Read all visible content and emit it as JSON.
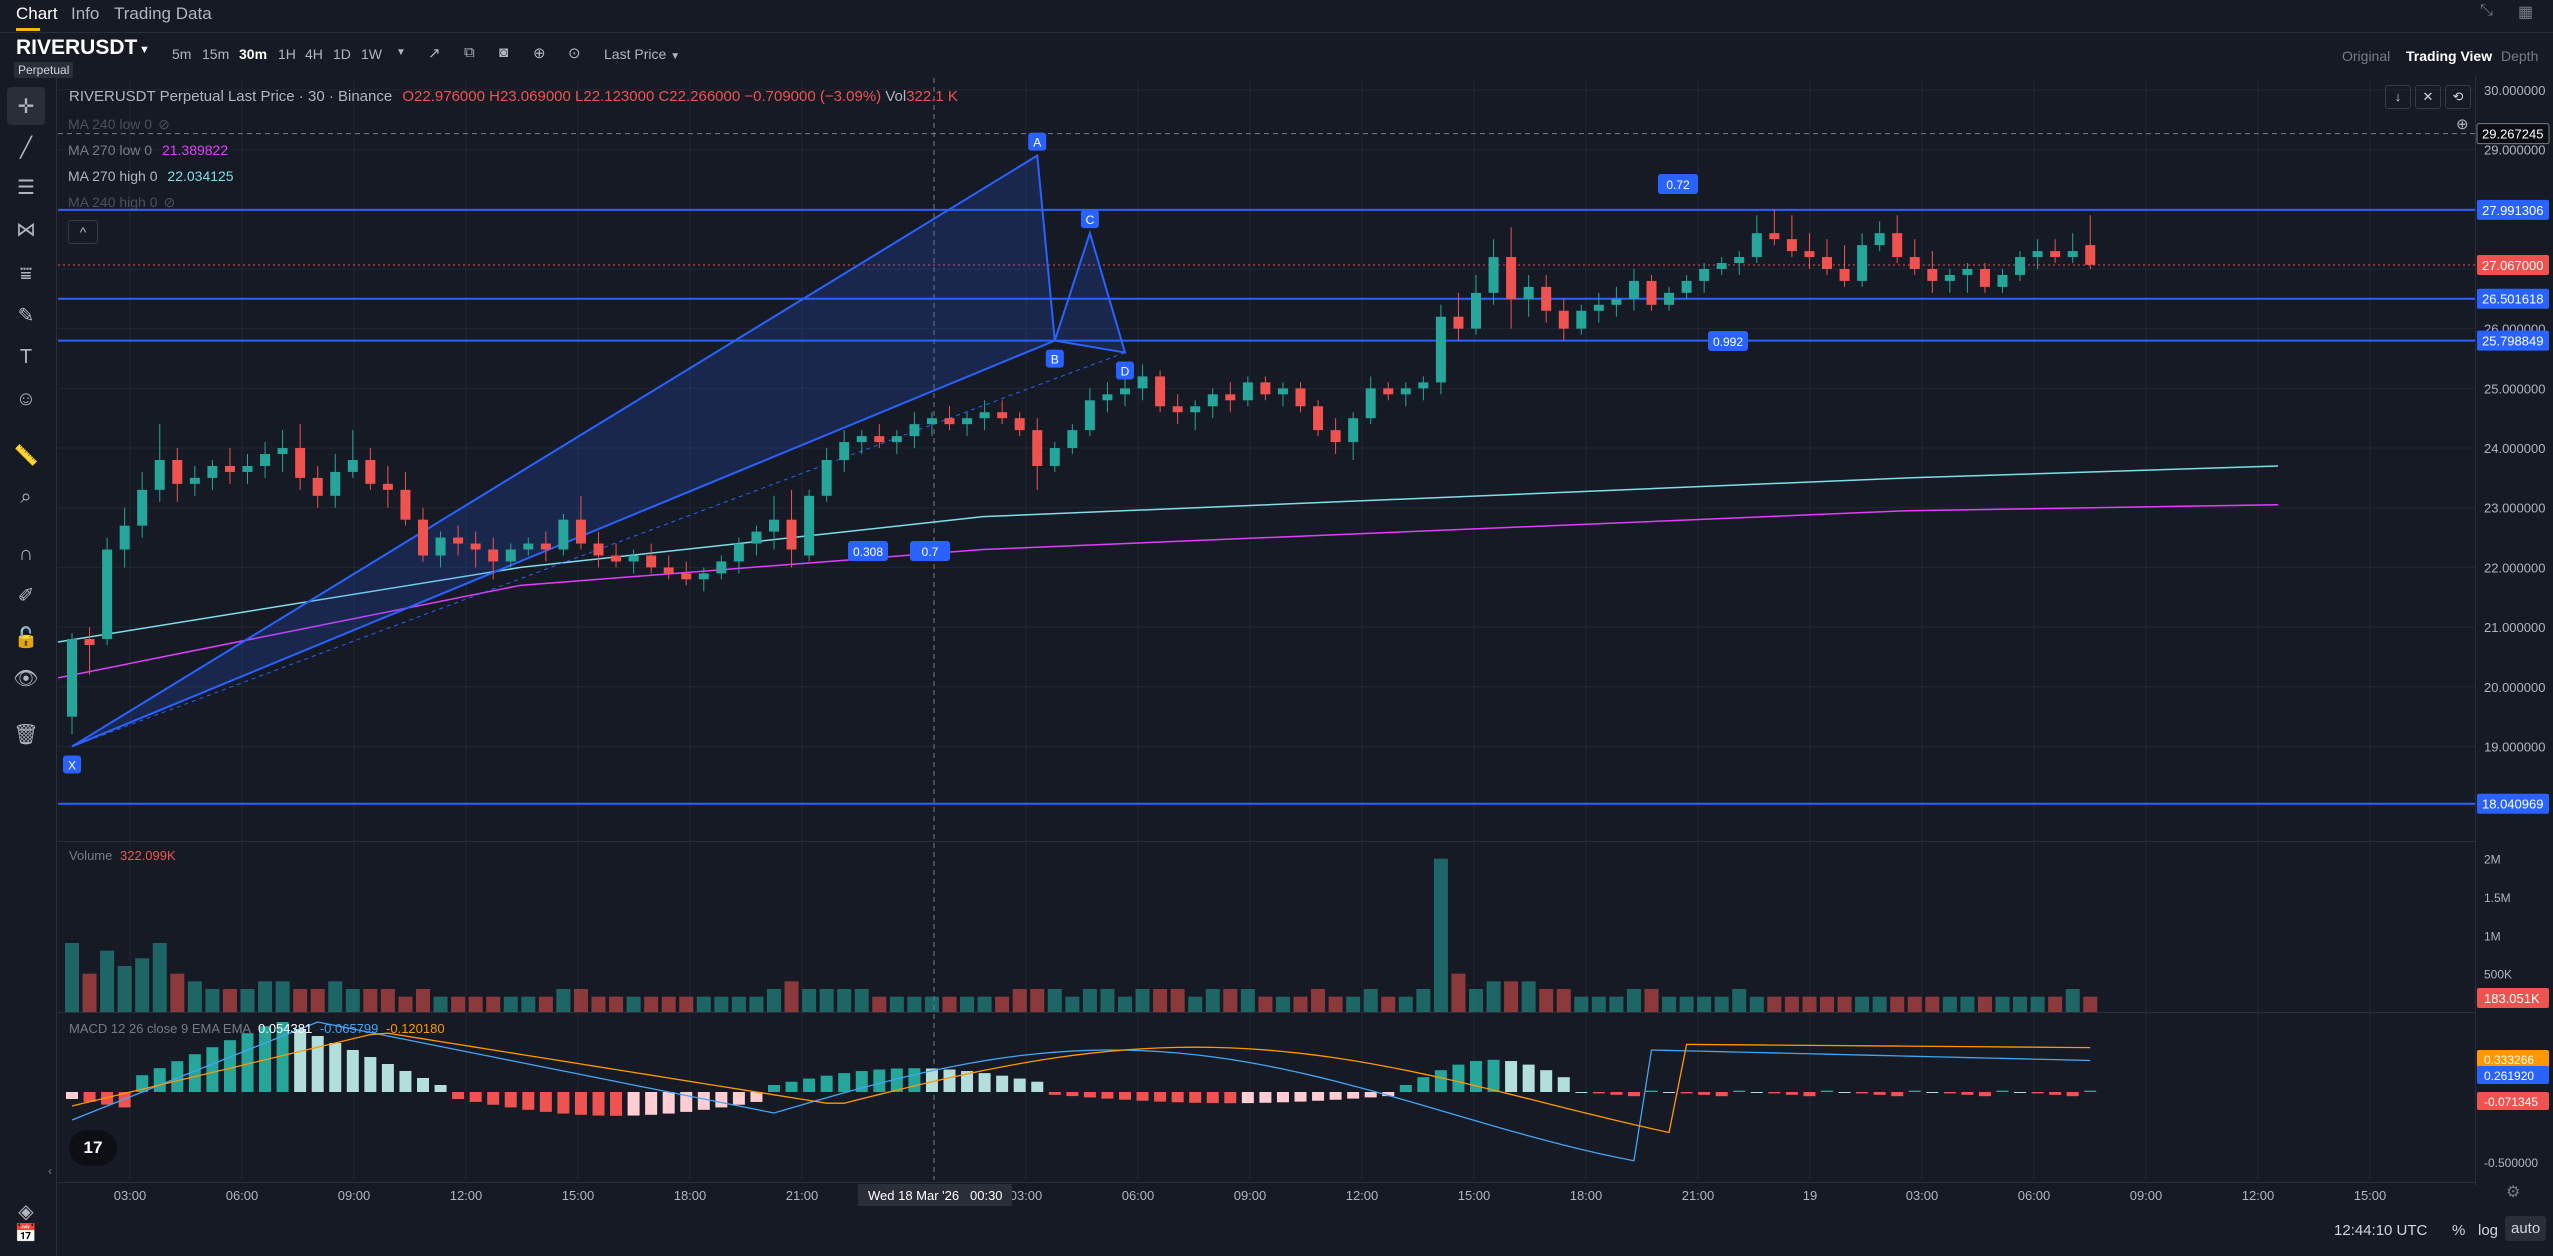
{
  "header": {
    "tabs": [
      "Chart",
      "Info",
      "Trading Data"
    ],
    "symbol": "RIVERUSDT",
    "symbol_sub": "Perpetual",
    "timeframes": [
      "5m",
      "15m",
      "30m",
      "1H",
      "4H",
      "1D",
      "1W"
    ],
    "active_timeframe": "30m",
    "price_source": "Last Price",
    "views": [
      "Original",
      "Trading View",
      "Depth"
    ],
    "active_view": "Trading View"
  },
  "legend": {
    "title": "RIVERUSDT Perpetual Last Price · 30 · Binance",
    "open": "O22.976000",
    "high": "H23.069000",
    "low": "L22.123000",
    "close": "C22.266000",
    "change": "−0.709000 (−3.09%)",
    "vol_label": "Vol",
    "vol_value": "322.1 K",
    "ma": [
      {
        "label": "MA 240 low 0",
        "value": "",
        "hidden": true
      },
      {
        "label": "MA 270 low 0",
        "value": "21.389822",
        "color": "#e040fb"
      },
      {
        "label": "MA 270 high 0",
        "value": "22.034125",
        "color": "#80deea"
      },
      {
        "label": "MA 240 high 0",
        "value": "",
        "hidden": true
      }
    ]
  },
  "volume_legend": {
    "label": "Volume",
    "value": "322.099K"
  },
  "macd_legend": {
    "label": "MACD 12 26 close 9 EMA EMA",
    "macd": "0.054381",
    "signal": "-0.065799",
    "hist": "-0.120180"
  },
  "price_axis": {
    "ticks": [
      "30.000000",
      "29.000000",
      "28.000000",
      "27.000000",
      "26.000000",
      "25.000000",
      "24.000000",
      "23.000000",
      "22.000000",
      "21.000000",
      "20.000000",
      "19.000000",
      "18.000000"
    ],
    "tags": [
      {
        "value": "29.267245",
        "style": "crosshair"
      },
      {
        "value": "27.991306",
        "style": "line"
      },
      {
        "value": "27.067000",
        "style": "last"
      },
      {
        "value": "26.501618",
        "style": "line"
      },
      {
        "value": "25.798849",
        "style": "line"
      },
      {
        "value": "18.040969",
        "style": "line"
      }
    ]
  },
  "volume_axis": {
    "ticks": [
      "2M",
      "1.5M",
      "1M",
      "500K"
    ],
    "tag": "183.051K"
  },
  "macd_axis": {
    "ticks": [
      "-0.500000"
    ],
    "tags": [
      "0.333266",
      "0.261920",
      "-0.071345"
    ]
  },
  "time_axis": {
    "labels": [
      "03:00",
      "06:00",
      "09:00",
      "12:00",
      "15:00",
      "18:00",
      "21:00",
      "00:30",
      "03:00",
      "06:00",
      "09:00",
      "12:00",
      "15:00",
      "18:00",
      "21:00",
      "19",
      "03:00",
      "06:00",
      "09:00",
      "12:00",
      "15:00"
    ],
    "crosshair_label": "Wed 18 Mar '26"
  },
  "footer": {
    "clock": "12:44:10 UTC",
    "percent": "%",
    "log": "log",
    "auto": "auto"
  },
  "harmonic": {
    "points": [
      "X",
      "A",
      "B",
      "C",
      "D"
    ],
    "ratios": [
      "0.308",
      "0.72",
      "0.992",
      "0.7"
    ]
  },
  "colors": {
    "up": "#26a69a",
    "down": "#ef5350",
    "accent": "#2962ff",
    "ma_low": "#e040fb",
    "ma_high": "#80deea"
  },
  "chart_data": {
    "type": "candlestick",
    "title": "RIVERUSDT Perpetual Last Price · 30 · Binance",
    "interval": "30m",
    "ylim": [
      17.5,
      30.2
    ],
    "first_bar_time": "Mar 17 01:30",
    "ohlc": [
      [
        19.5,
        20.9,
        19.2,
        20.8
      ],
      [
        20.8,
        21.0,
        20.2,
        20.7
      ],
      [
        20.8,
        22.5,
        20.7,
        22.3
      ],
      [
        22.3,
        23.0,
        22.0,
        22.7
      ],
      [
        22.7,
        23.6,
        22.5,
        23.3
      ],
      [
        23.3,
        24.4,
        23.1,
        23.8
      ],
      [
        23.8,
        24.0,
        23.1,
        23.4
      ],
      [
        23.4,
        23.7,
        23.2,
        23.5
      ],
      [
        23.5,
        23.8,
        23.3,
        23.7
      ],
      [
        23.7,
        24.0,
        23.4,
        23.6
      ],
      [
        23.6,
        23.9,
        23.4,
        23.7
      ],
      [
        23.7,
        24.1,
        23.5,
        23.9
      ],
      [
        23.9,
        24.3,
        23.6,
        24.0
      ],
      [
        24.0,
        24.4,
        23.3,
        23.5
      ],
      [
        23.5,
        23.7,
        23.0,
        23.2
      ],
      [
        23.2,
        23.9,
        23.0,
        23.6
      ],
      [
        23.6,
        24.3,
        23.5,
        23.8
      ],
      [
        23.8,
        24.0,
        23.3,
        23.4
      ],
      [
        23.4,
        23.7,
        23.0,
        23.3
      ],
      [
        23.3,
        23.6,
        22.7,
        22.8
      ],
      [
        22.8,
        23.0,
        22.1,
        22.2
      ],
      [
        22.2,
        22.6,
        22.0,
        22.5
      ],
      [
        22.5,
        22.7,
        22.2,
        22.4
      ],
      [
        22.4,
        22.6,
        22.0,
        22.3
      ],
      [
        22.3,
        22.5,
        21.8,
        22.1
      ],
      [
        22.1,
        22.4,
        22.0,
        22.3
      ],
      [
        22.3,
        22.5,
        22.2,
        22.4
      ],
      [
        22.4,
        22.6,
        22.1,
        22.3
      ],
      [
        22.3,
        22.9,
        22.2,
        22.8
      ],
      [
        22.8,
        23.2,
        22.3,
        22.4
      ],
      [
        22.4,
        22.6,
        22.0,
        22.2
      ],
      [
        22.2,
        22.4,
        22.0,
        22.1
      ],
      [
        22.1,
        22.3,
        21.9,
        22.2
      ],
      [
        22.2,
        22.4,
        21.9,
        22.0
      ],
      [
        22.0,
        22.2,
        21.8,
        21.9
      ],
      [
        21.9,
        22.1,
        21.7,
        21.8
      ],
      [
        21.8,
        22.0,
        21.6,
        21.9
      ],
      [
        21.9,
        22.2,
        21.8,
        22.1
      ],
      [
        22.1,
        22.5,
        21.9,
        22.4
      ],
      [
        22.4,
        22.7,
        22.2,
        22.6
      ],
      [
        22.6,
        23.2,
        22.3,
        22.8
      ],
      [
        22.8,
        23.3,
        22.0,
        22.3
      ],
      [
        22.2,
        23.3,
        22.1,
        23.2
      ],
      [
        23.2,
        24.0,
        23.1,
        23.8
      ],
      [
        23.8,
        24.3,
        23.6,
        24.1
      ],
      [
        24.1,
        24.3,
        23.9,
        24.2
      ],
      [
        24.2,
        24.4,
        24.0,
        24.1
      ],
      [
        24.1,
        24.3,
        23.9,
        24.2
      ],
      [
        24.2,
        24.6,
        24.0,
        24.4
      ],
      [
        24.4,
        24.6,
        24.2,
        24.5
      ],
      [
        24.5,
        24.7,
        24.3,
        24.4
      ],
      [
        24.4,
        24.6,
        24.2,
        24.5
      ],
      [
        24.5,
        24.8,
        24.3,
        24.6
      ],
      [
        24.6,
        24.8,
        24.4,
        24.5
      ],
      [
        24.5,
        24.6,
        24.2,
        24.3
      ],
      [
        24.3,
        24.5,
        23.3,
        23.7
      ],
      [
        23.7,
        24.1,
        23.6,
        24.0
      ],
      [
        24.0,
        24.4,
        23.9,
        24.3
      ],
      [
        24.3,
        25.0,
        24.2,
        24.8
      ],
      [
        24.8,
        25.1,
        24.6,
        24.9
      ],
      [
        24.9,
        25.2,
        24.7,
        25.0
      ],
      [
        25.0,
        25.4,
        24.8,
        25.2
      ],
      [
        25.2,
        25.3,
        24.6,
        24.7
      ],
      [
        24.7,
        24.9,
        24.4,
        24.6
      ],
      [
        24.6,
        24.8,
        24.3,
        24.7
      ],
      [
        24.7,
        25.0,
        24.5,
        24.9
      ],
      [
        24.9,
        25.1,
        24.6,
        24.8
      ],
      [
        24.8,
        25.2,
        24.7,
        25.1
      ],
      [
        25.1,
        25.2,
        24.8,
        24.9
      ],
      [
        24.9,
        25.1,
        24.7,
        25.0
      ],
      [
        25.0,
        25.1,
        24.6,
        24.7
      ],
      [
        24.7,
        24.8,
        24.2,
        24.3
      ],
      [
        24.3,
        24.5,
        23.9,
        24.1
      ],
      [
        24.1,
        24.6,
        23.8,
        24.5
      ],
      [
        24.5,
        25.2,
        24.4,
        25.0
      ],
      [
        25.0,
        25.1,
        24.8,
        24.9
      ],
      [
        24.9,
        25.1,
        24.7,
        25.0
      ],
      [
        25.0,
        25.2,
        24.8,
        25.1
      ],
      [
        25.1,
        26.4,
        24.9,
        26.2
      ],
      [
        26.2,
        26.6,
        25.8,
        26.0
      ],
      [
        26.0,
        26.9,
        25.9,
        26.6
      ],
      [
        26.6,
        27.5,
        26.4,
        27.2
      ],
      [
        27.2,
        27.7,
        26.0,
        26.5
      ],
      [
        26.5,
        26.9,
        26.2,
        26.7
      ],
      [
        26.7,
        26.9,
        26.1,
        26.3
      ],
      [
        26.3,
        26.5,
        25.8,
        26.0
      ],
      [
        26.0,
        26.4,
        25.9,
        26.3
      ],
      [
        26.3,
        26.6,
        26.1,
        26.4
      ],
      [
        26.4,
        26.7,
        26.2,
        26.5
      ],
      [
        26.5,
        27.0,
        26.3,
        26.8
      ],
      [
        26.8,
        26.9,
        26.3,
        26.4
      ],
      [
        26.4,
        26.7,
        26.3,
        26.6
      ],
      [
        26.6,
        26.9,
        26.5,
        26.8
      ],
      [
        26.8,
        27.1,
        26.6,
        27.0
      ],
      [
        27.0,
        27.2,
        26.9,
        27.1
      ],
      [
        27.1,
        27.3,
        26.9,
        27.2
      ],
      [
        27.2,
        27.9,
        27.1,
        27.6
      ],
      [
        27.6,
        28.0,
        27.4,
        27.5
      ],
      [
        27.5,
        27.9,
        27.2,
        27.3
      ],
      [
        27.3,
        27.6,
        27.0,
        27.2
      ],
      [
        27.2,
        27.5,
        26.9,
        27.0
      ],
      [
        27.0,
        27.4,
        26.7,
        26.8
      ],
      [
        26.8,
        27.6,
        26.7,
        27.4
      ],
      [
        27.4,
        27.8,
        27.3,
        27.6
      ],
      [
        27.6,
        27.9,
        27.1,
        27.2
      ],
      [
        27.2,
        27.5,
        26.9,
        27.0
      ],
      [
        27.0,
        27.3,
        26.6,
        26.8
      ],
      [
        26.8,
        27.0,
        26.6,
        26.9
      ],
      [
        26.9,
        27.1,
        26.6,
        27.0
      ],
      [
        27.0,
        27.1,
        26.6,
        26.7
      ],
      [
        26.7,
        27.0,
        26.6,
        26.9
      ],
      [
        26.9,
        27.3,
        26.8,
        27.2
      ],
      [
        27.2,
        27.5,
        27.0,
        27.3
      ],
      [
        27.3,
        27.5,
        27.1,
        27.2
      ],
      [
        27.2,
        27.6,
        27.1,
        27.3
      ],
      [
        27.4,
        27.9,
        27.0,
        27.07
      ]
    ],
    "volume_approx": [
      0.9,
      0.5,
      0.8,
      0.6,
      0.7,
      0.9,
      0.5,
      0.4,
      0.3,
      0.3,
      0.3,
      0.4,
      0.4,
      0.3,
      0.3,
      0.4,
      0.3,
      0.3,
      0.3,
      0.2,
      0.3,
      0.2,
      0.2,
      0.2,
      0.2,
      0.2,
      0.2,
      0.2,
      0.3,
      0.3,
      0.2,
      0.2,
      0.2,
      0.2,
      0.2,
      0.2,
      0.2,
      0.2,
      0.2,
      0.2,
      0.3,
      0.4,
      0.3,
      0.3,
      0.3,
      0.3,
      0.2,
      0.2,
      0.2,
      0.2,
      0.2,
      0.2,
      0.2,
      0.2,
      0.3,
      0.3,
      0.3,
      0.2,
      0.3,
      0.3,
      0.2,
      0.3,
      0.3,
      0.3,
      0.2,
      0.3,
      0.3,
      0.3,
      0.2,
      0.2,
      0.2,
      0.3,
      0.2,
      0.2,
      0.3,
      0.2,
      0.2,
      0.3,
      2.0,
      0.5,
      0.3,
      0.4,
      0.4,
      0.4,
      0.3,
      0.3,
      0.2,
      0.2,
      0.2,
      0.3,
      0.3,
      0.2,
      0.2,
      0.2,
      0.2,
      0.3,
      0.2,
      0.2,
      0.2,
      0.2,
      0.2,
      0.2,
      0.2,
      0.2,
      0.2,
      0.2,
      0.2,
      0.2,
      0.2,
      0.2,
      0.2,
      0.2,
      0.2,
      0.2,
      0.3,
      0.2
    ],
    "ma270_low": [
      [
        0,
        20.15
      ],
      [
        100,
        21.7
      ],
      [
        200,
        22.3
      ],
      [
        400,
        22.95
      ],
      [
        480,
        23.05
      ]
    ],
    "ma270_high": [
      [
        0,
        20.75
      ],
      [
        100,
        22.0
      ],
      [
        200,
        22.85
      ],
      [
        400,
        23.5
      ],
      [
        480,
        23.7
      ]
    ]
  }
}
